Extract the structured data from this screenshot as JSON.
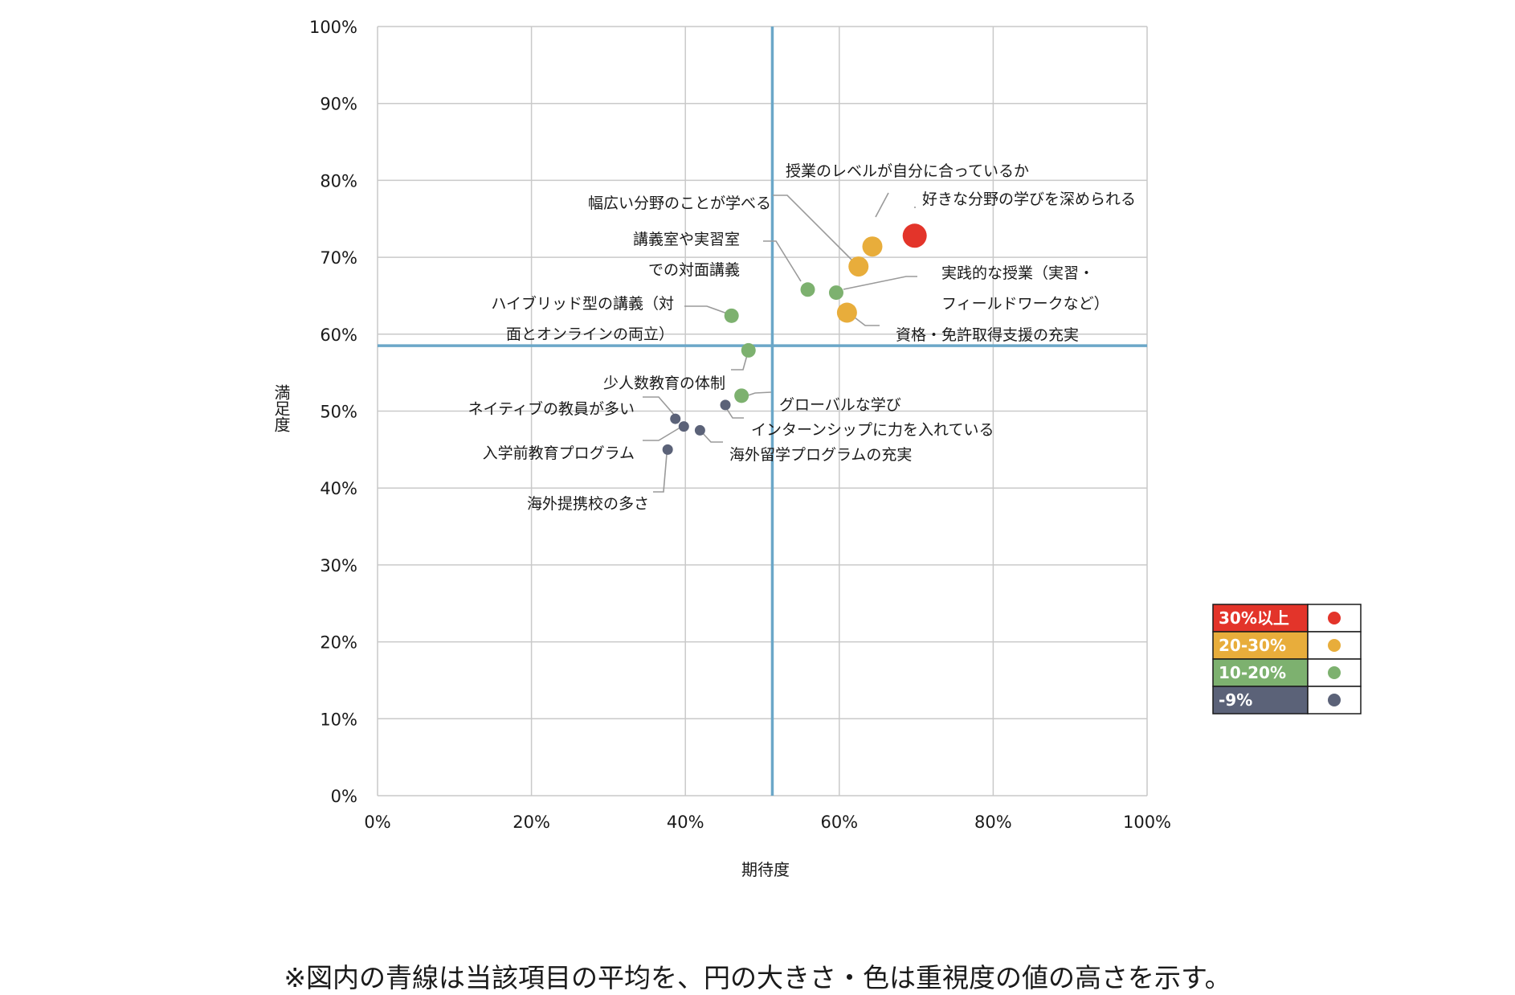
{
  "chart_data": {
    "type": "scatter",
    "xlabel": "期待度",
    "ylabel": "満足度",
    "xlim": [
      0,
      1
    ],
    "ylim": [
      0,
      1
    ],
    "xticks": [
      "0%",
      "20%",
      "40%",
      "60%",
      "80%",
      "100%"
    ],
    "yticks": [
      "0%",
      "10%",
      "20%",
      "30%",
      "40%",
      "50%",
      "60%",
      "70%",
      "80%",
      "90%",
      "100%"
    ],
    "grid": true,
    "average_lines": {
      "x": 0.513,
      "y": 0.585,
      "color": "#6ba7c8"
    },
    "legend": {
      "placement": "right",
      "entries": [
        {
          "key": "30",
          "label": "30%以上",
          "color": "#e3342a"
        },
        {
          "key": "20",
          "label": "20-30%",
          "color": "#e8ad3b"
        },
        {
          "key": "10",
          "label": "10-20%",
          "color": "#7db16f"
        },
        {
          "key": "0",
          "label": "-9%",
          "color": "#5b6278"
        }
      ]
    },
    "points": [
      {
        "label": "好きな分野の学びを深められる",
        "lines": [
          "好きな分野の学びを深められる"
        ],
        "x": 0.698,
        "y": 0.728,
        "group": "30"
      },
      {
        "label": "授業のレベルが自分に合っているか",
        "lines": [
          "授業のレベルが自分に合っているか"
        ],
        "x": 0.643,
        "y": 0.714,
        "group": "20"
      },
      {
        "label": "幅広い分野のことが学べる",
        "lines": [
          "幅広い分野のことが学べる"
        ],
        "x": 0.625,
        "y": 0.688,
        "group": "20"
      },
      {
        "label": "資格・免許取得支援の充実",
        "lines": [
          "資格・免許取得支援の充実"
        ],
        "x": 0.61,
        "y": 0.628,
        "group": "20"
      },
      {
        "label": "実践的な授業（実習・フィールドワークなど）",
        "lines": [
          "実践的な授業（実習・",
          "フィールドワークなど）"
        ],
        "x": 0.596,
        "y": 0.654,
        "group": "10"
      },
      {
        "label": "講義室や実習室での対面講義",
        "lines": [
          "講義室や実習室",
          "での対面講義"
        ],
        "x": 0.559,
        "y": 0.658,
        "group": "10"
      },
      {
        "label": "ハイブリッド型の講義（対面とオンラインの両立）",
        "lines": [
          "ハイブリッド型の講義（対",
          "面とオンラインの両立）"
        ],
        "x": 0.46,
        "y": 0.624,
        "group": "10"
      },
      {
        "label": "少人数教育の体制",
        "lines": [
          "少人数教育の体制"
        ],
        "x": 0.482,
        "y": 0.579,
        "group": "10"
      },
      {
        "label": "グローバルな学び",
        "lines": [
          "グローバルな学び"
        ],
        "x": 0.473,
        "y": 0.52,
        "group": "10"
      },
      {
        "label": "インターンシップに力を入れている",
        "lines": [
          "インターンシップに力を入れている"
        ],
        "x": 0.452,
        "y": 0.508,
        "group": "0"
      },
      {
        "label": "ネイティブの教員が多い",
        "lines": [
          "ネイティブの教員が多い"
        ],
        "x": 0.387,
        "y": 0.49,
        "group": "0"
      },
      {
        "label": "入学前教育プログラム",
        "lines": [
          "入学前教育プログラム"
        ],
        "x": 0.398,
        "y": 0.48,
        "group": "0"
      },
      {
        "label": "海外留学プログラムの充実",
        "lines": [
          "海外留学プログラムの充実"
        ],
        "x": 0.419,
        "y": 0.475,
        "group": "0"
      },
      {
        "label": "海外提携校の多さ",
        "lines": [
          "海外提携校の多さ"
        ],
        "x": 0.377,
        "y": 0.45,
        "group": "0"
      }
    ]
  },
  "footnote": "※図内の青線は当該項目の平均を、円の大きさ・色は重視度の値の高さを示す。"
}
